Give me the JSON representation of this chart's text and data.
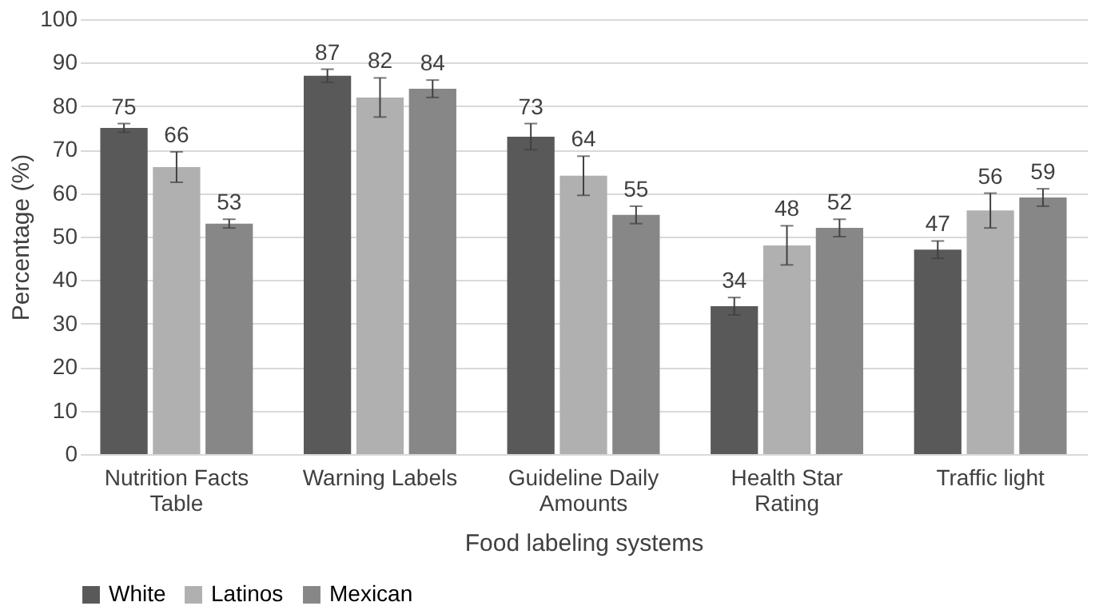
{
  "chart_data": {
    "type": "bar",
    "xlabel": "Food labeling systems",
    "ylabel": "Percentage (%)",
    "categories": [
      "Nutrition Facts Table",
      "Warning Labels",
      "Guideline Daily Amounts",
      "Health Star Rating",
      "Traffic light"
    ],
    "series": [
      {
        "name": "White",
        "color": "#595959",
        "values": [
          75,
          87,
          73,
          34,
          47
        ],
        "errors": [
          1,
          1.5,
          3,
          2,
          2
        ]
      },
      {
        "name": "Latinos",
        "color": "#b0b0b0",
        "values": [
          66,
          82,
          64,
          48,
          56
        ],
        "errors": [
          3.5,
          4.5,
          4.5,
          4.5,
          4
        ]
      },
      {
        "name": "Mexican",
        "color": "#878787",
        "values": [
          53,
          84,
          55,
          52,
          59
        ],
        "errors": [
          1,
          2,
          2,
          2,
          2
        ]
      }
    ],
    "ylim": [
      0,
      100
    ],
    "yticks": [
      0,
      10,
      20,
      30,
      40,
      50,
      60,
      70,
      80,
      90,
      100
    ],
    "grid": "y",
    "legend": "bottom",
    "data_labels": true
  }
}
